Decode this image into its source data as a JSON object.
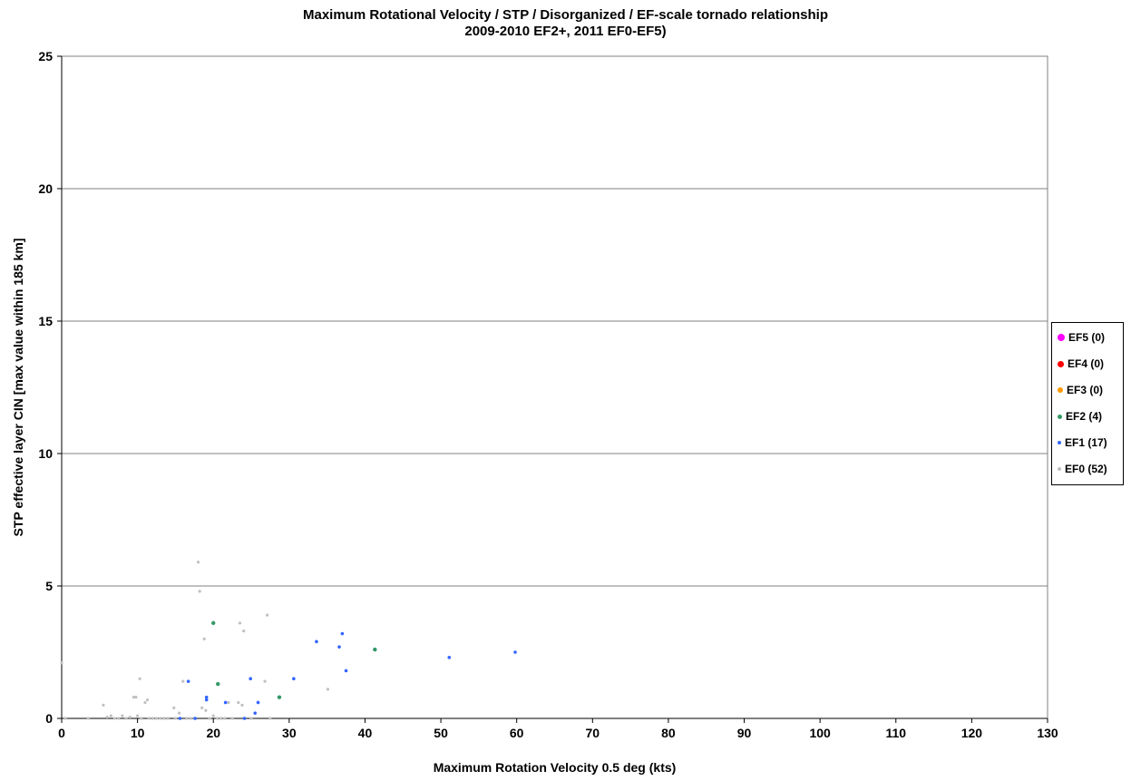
{
  "chart_data": {
    "type": "scatter",
    "title": "Maximum Rotational Velocity / STP / Disorganized / EF-scale tornado relationship",
    "subtitle": "2009-2010 EF2+, 2011 EF0-EF5)",
    "xlabel": "Maximum Rotation Velocity 0.5 deg (kts)",
    "ylabel": "STP effective layer CIN [max value within 185 km]",
    "xlim": [
      0,
      130
    ],
    "ylim": [
      0,
      25
    ],
    "xticks": [
      0,
      10,
      20,
      30,
      40,
      50,
      60,
      70,
      80,
      90,
      100,
      110,
      120,
      130
    ],
    "yticks": [
      0,
      5,
      10,
      15,
      20,
      25
    ],
    "grid": "horizontal major gridlines",
    "legend_position": "right",
    "series": [
      {
        "name": "EF5 (0)",
        "color": "#ff00ff",
        "points": []
      },
      {
        "name": "EF4 (0)",
        "color": "#ff0000",
        "points": []
      },
      {
        "name": "EF3 (0)",
        "color": "#ff9900",
        "points": []
      },
      {
        "name": "EF2 (4)",
        "color": "#339966",
        "points": [
          [
            20,
            3.6
          ],
          [
            20.6,
            1.3
          ],
          [
            28.7,
            0.8
          ],
          [
            41.3,
            2.6
          ]
        ]
      },
      {
        "name": "EF1 (17)",
        "color": "#3366ff",
        "points": [
          [
            15.6,
            0
          ],
          [
            16.7,
            1.4
          ],
          [
            17.6,
            0
          ],
          [
            19.1,
            0.8
          ],
          [
            19.1,
            0.7
          ],
          [
            21.6,
            0.6
          ],
          [
            24.1,
            0
          ],
          [
            24.9,
            1.5
          ],
          [
            25.5,
            0.2
          ],
          [
            25.9,
            0.6
          ],
          [
            30.6,
            1.5
          ],
          [
            33.6,
            2.9
          ],
          [
            36.6,
            2.7
          ],
          [
            37,
            3.2
          ],
          [
            37.5,
            1.8
          ],
          [
            51.1,
            2.3
          ],
          [
            59.8,
            2.5
          ]
        ]
      },
      {
        "name": "EF0 (52)",
        "color": "#c0c0c0",
        "points": [
          [
            0,
            2.1
          ],
          [
            0.5,
            0
          ],
          [
            3.5,
            0
          ],
          [
            5.5,
            0.5
          ],
          [
            6,
            0.05
          ],
          [
            6.5,
            0.1
          ],
          [
            7,
            0
          ],
          [
            7.5,
            0
          ],
          [
            8,
            0.1
          ],
          [
            8.5,
            0
          ],
          [
            9,
            0.05
          ],
          [
            9.5,
            0.8
          ],
          [
            9.8,
            0.8
          ],
          [
            10,
            0.1
          ],
          [
            10.3,
            1.5
          ],
          [
            10.5,
            0
          ],
          [
            11,
            0.6
          ],
          [
            11.3,
            0.7
          ],
          [
            11.5,
            0
          ],
          [
            12,
            0
          ],
          [
            12.5,
            0
          ],
          [
            13,
            0
          ],
          [
            13.5,
            0
          ],
          [
            14,
            0
          ],
          [
            14.8,
            0.4
          ],
          [
            15,
            0
          ],
          [
            15.5,
            0.2
          ],
          [
            16,
            1.4
          ],
          [
            16.5,
            0
          ],
          [
            17,
            0
          ],
          [
            17.5,
            0
          ],
          [
            18,
            5.9
          ],
          [
            18.2,
            4.8
          ],
          [
            18.5,
            0.4
          ],
          [
            18.8,
            3
          ],
          [
            19,
            0.3
          ],
          [
            19.5,
            0
          ],
          [
            20,
            0.1
          ],
          [
            20.5,
            0
          ],
          [
            21,
            0
          ],
          [
            21.5,
            0
          ],
          [
            22,
            0.6
          ],
          [
            22.5,
            0
          ],
          [
            23.3,
            0.6
          ],
          [
            23.5,
            3.6
          ],
          [
            23.8,
            0.5
          ],
          [
            24,
            3.3
          ],
          [
            25,
            0
          ],
          [
            26.8,
            1.4
          ],
          [
            27.1,
            3.9
          ],
          [
            27.5,
            0
          ],
          [
            35.1,
            1.1
          ]
        ]
      }
    ]
  }
}
